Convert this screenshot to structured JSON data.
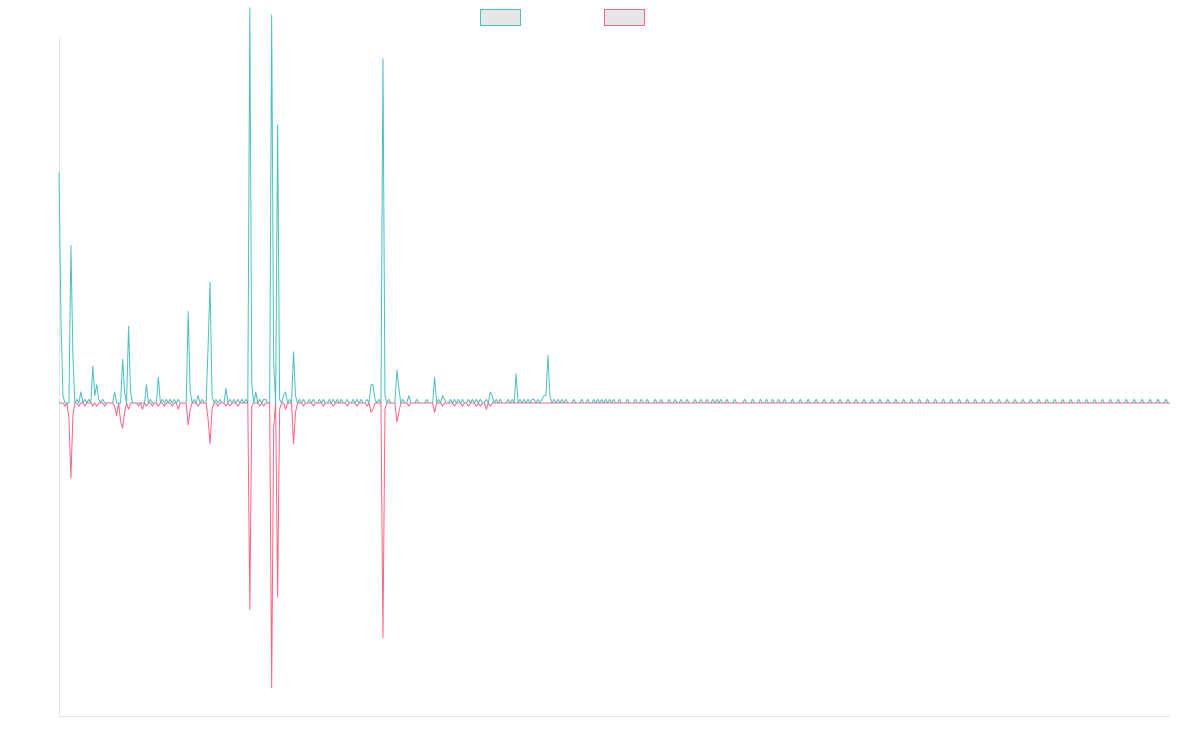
{
  "chart_data": {
    "type": "line",
    "title": "",
    "xlabel": "",
    "ylabel": "",
    "ylim": [
      -100,
      100
    ],
    "x_count": 560,
    "grid": false,
    "legend": "top-center",
    "background_color": "#ffffff",
    "axis_color": "#e6e6e6",
    "legend_box_fill": "#e6e6e6",
    "series": [
      {
        "name": "",
        "color": "#4bc0c0",
        "direction": "up",
        "peaks": [
          [
            0,
            63
          ],
          [
            1,
            22
          ],
          [
            2,
            2
          ],
          [
            6,
            43
          ],
          [
            7,
            13
          ],
          [
            9,
            1
          ],
          [
            11,
            3
          ],
          [
            13,
            1
          ],
          [
            15,
            1
          ],
          [
            17,
            10
          ],
          [
            18,
            2
          ],
          [
            19,
            5
          ],
          [
            20,
            1
          ],
          [
            22,
            1
          ],
          [
            28,
            3
          ],
          [
            32,
            12
          ],
          [
            33,
            3
          ],
          [
            35,
            21
          ],
          [
            36,
            3
          ],
          [
            44,
            5
          ],
          [
            46,
            1
          ],
          [
            50,
            7
          ],
          [
            52,
            1
          ],
          [
            54,
            1
          ],
          [
            56,
            1
          ],
          [
            58,
            1
          ],
          [
            60,
            1
          ],
          [
            65,
            25
          ],
          [
            66,
            3
          ],
          [
            68,
            1
          ],
          [
            70,
            2
          ],
          [
            72,
            1
          ],
          [
            75,
            15
          ],
          [
            76,
            33
          ],
          [
            77,
            2
          ],
          [
            79,
            1
          ],
          [
            81,
            1
          ],
          [
            84,
            4
          ],
          [
            86,
            1
          ],
          [
            88,
            1
          ],
          [
            90,
            1
          ],
          [
            92,
            1
          ],
          [
            94,
            1
          ],
          [
            96,
            108
          ],
          [
            97,
            5
          ],
          [
            99,
            3
          ],
          [
            101,
            1
          ],
          [
            103,
            1
          ],
          [
            104,
            1
          ],
          [
            107,
            106
          ],
          [
            108,
            11
          ],
          [
            110,
            76
          ],
          [
            111,
            1
          ],
          [
            113,
            2
          ],
          [
            114,
            3
          ],
          [
            116,
            1
          ],
          [
            118,
            14
          ],
          [
            119,
            2
          ],
          [
            121,
            1
          ],
          [
            123,
            1
          ],
          [
            126,
            1
          ],
          [
            128,
            1
          ],
          [
            131,
            1
          ],
          [
            133,
            1
          ],
          [
            136,
            1
          ],
          [
            138,
            1
          ],
          [
            140,
            1
          ],
          [
            142,
            1
          ],
          [
            145,
            1
          ],
          [
            148,
            1
          ],
          [
            150,
            1
          ],
          [
            152,
            1
          ],
          [
            155,
            1
          ],
          [
            157,
            5
          ],
          [
            158,
            5
          ],
          [
            159,
            1
          ],
          [
            161,
            1
          ],
          [
            163,
            94
          ],
          [
            164,
            2
          ],
          [
            166,
            1
          ],
          [
            170,
            9
          ],
          [
            171,
            4
          ],
          [
            173,
            1
          ],
          [
            176,
            2
          ],
          [
            180,
            1
          ],
          [
            185,
            1
          ],
          [
            189,
            7
          ],
          [
            191,
            1
          ],
          [
            193,
            2
          ],
          [
            194,
            1
          ],
          [
            197,
            1
          ],
          [
            199,
            1
          ],
          [
            201,
            1
          ],
          [
            203,
            1
          ],
          [
            206,
            1
          ],
          [
            208,
            1
          ],
          [
            210,
            1
          ],
          [
            212,
            1
          ],
          [
            215,
            1
          ],
          [
            217,
            3
          ],
          [
            218,
            2
          ],
          [
            220,
            1
          ],
          [
            222,
            1
          ],
          [
            226,
            1
          ],
          [
            228,
            1
          ],
          [
            230,
            8
          ],
          [
            232,
            1
          ],
          [
            234,
            1
          ],
          [
            236,
            1
          ],
          [
            238,
            1
          ],
          [
            239,
            1
          ],
          [
            241,
            1
          ],
          [
            243,
            1
          ],
          [
            244,
            2
          ],
          [
            245,
            2
          ],
          [
            246,
            13
          ],
          [
            247,
            2
          ],
          [
            249,
            1
          ],
          [
            251,
            1
          ],
          [
            253,
            1
          ],
          [
            255,
            1
          ],
          [
            259,
            1
          ],
          [
            263,
            1
          ],
          [
            266,
            1
          ],
          [
            269,
            1
          ],
          [
            271,
            1
          ],
          [
            273,
            1
          ],
          [
            275,
            1
          ],
          [
            277,
            1
          ],
          [
            279,
            1
          ],
          [
            282,
            1
          ],
          [
            286,
            1
          ],
          [
            290,
            1
          ],
          [
            293,
            1
          ],
          [
            296,
            1
          ],
          [
            300,
            1
          ],
          [
            303,
            1
          ],
          [
            307,
            1
          ],
          [
            310,
            1
          ],
          [
            313,
            1
          ],
          [
            316,
            1
          ],
          [
            320,
            1
          ],
          [
            323,
            1
          ],
          [
            326,
            1
          ],
          [
            329,
            1
          ],
          [
            331,
            1
          ],
          [
            333,
            1
          ],
          [
            336,
            1
          ],
          [
            340,
            1
          ],
          [
            345,
            1
          ],
          [
            349,
            1
          ],
          [
            353,
            1
          ],
          [
            356,
            1
          ],
          [
            359,
            1
          ],
          [
            362,
            1
          ],
          [
            365,
            1
          ],
          [
            369,
            1
          ],
          [
            373,
            1
          ],
          [
            377,
            1
          ],
          [
            381,
            1
          ],
          [
            385,
            1
          ],
          [
            389,
            1
          ],
          [
            393,
            1
          ],
          [
            397,
            1
          ],
          [
            401,
            1
          ],
          [
            405,
            1
          ],
          [
            409,
            1
          ],
          [
            413,
            1
          ],
          [
            417,
            1
          ],
          [
            421,
            1
          ],
          [
            425,
            1
          ],
          [
            429,
            1
          ],
          [
            433,
            1
          ],
          [
            437,
            1
          ],
          [
            441,
            1
          ],
          [
            445,
            1
          ],
          [
            449,
            1
          ],
          [
            453,
            1
          ],
          [
            457,
            1
          ],
          [
            461,
            1
          ],
          [
            465,
            1
          ],
          [
            469,
            1
          ],
          [
            473,
            1
          ],
          [
            477,
            1
          ],
          [
            481,
            1
          ],
          [
            485,
            1
          ],
          [
            489,
            1
          ],
          [
            493,
            1
          ],
          [
            497,
            1
          ],
          [
            501,
            1
          ],
          [
            505,
            1
          ],
          [
            509,
            1
          ],
          [
            513,
            1
          ],
          [
            517,
            1
          ],
          [
            521,
            1
          ],
          [
            525,
            1
          ],
          [
            529,
            1
          ],
          [
            533,
            1
          ],
          [
            537,
            1
          ],
          [
            541,
            1
          ],
          [
            545,
            1
          ],
          [
            549,
            1
          ],
          [
            553,
            1
          ],
          [
            557,
            1
          ]
        ]
      },
      {
        "name": "",
        "color": "#ff6384",
        "direction": "down",
        "peaks": [
          [
            3,
            1
          ],
          [
            5,
            5
          ],
          [
            6,
            24
          ],
          [
            7,
            4
          ],
          [
            10,
            1
          ],
          [
            13,
            1
          ],
          [
            17,
            1
          ],
          [
            19,
            1
          ],
          [
            23,
            1
          ],
          [
            28,
            1
          ],
          [
            29,
            4
          ],
          [
            31,
            6
          ],
          [
            32,
            8
          ],
          [
            33,
            3
          ],
          [
            35,
            2
          ],
          [
            40,
            1
          ],
          [
            42,
            2
          ],
          [
            44,
            1
          ],
          [
            47,
            1
          ],
          [
            50,
            1
          ],
          [
            53,
            1
          ],
          [
            57,
            1
          ],
          [
            60,
            2
          ],
          [
            65,
            7
          ],
          [
            66,
            2
          ],
          [
            70,
            1
          ],
          [
            75,
            5
          ],
          [
            76,
            13
          ],
          [
            77,
            2
          ],
          [
            80,
            1
          ],
          [
            84,
            1
          ],
          [
            86,
            1
          ],
          [
            90,
            1
          ],
          [
            96,
            66
          ],
          [
            97,
            1
          ],
          [
            101,
            1
          ],
          [
            103,
            1
          ],
          [
            107,
            91
          ],
          [
            108,
            8
          ],
          [
            110,
            62
          ],
          [
            111,
            2
          ],
          [
            114,
            2
          ],
          [
            118,
            13
          ],
          [
            119,
            3
          ],
          [
            123,
            1
          ],
          [
            128,
            1
          ],
          [
            133,
            1
          ],
          [
            138,
            1
          ],
          [
            145,
            1
          ],
          [
            150,
            1
          ],
          [
            155,
            1
          ],
          [
            157,
            3
          ],
          [
            158,
            2
          ],
          [
            163,
            75
          ],
          [
            164,
            2
          ],
          [
            170,
            6
          ],
          [
            171,
            3
          ],
          [
            176,
            1
          ],
          [
            189,
            3
          ],
          [
            193,
            1
          ],
          [
            199,
            1
          ],
          [
            203,
            1
          ],
          [
            206,
            1
          ],
          [
            210,
            1
          ],
          [
            212,
            1
          ],
          [
            215,
            2
          ],
          [
            217,
            1
          ]
        ]
      }
    ]
  }
}
